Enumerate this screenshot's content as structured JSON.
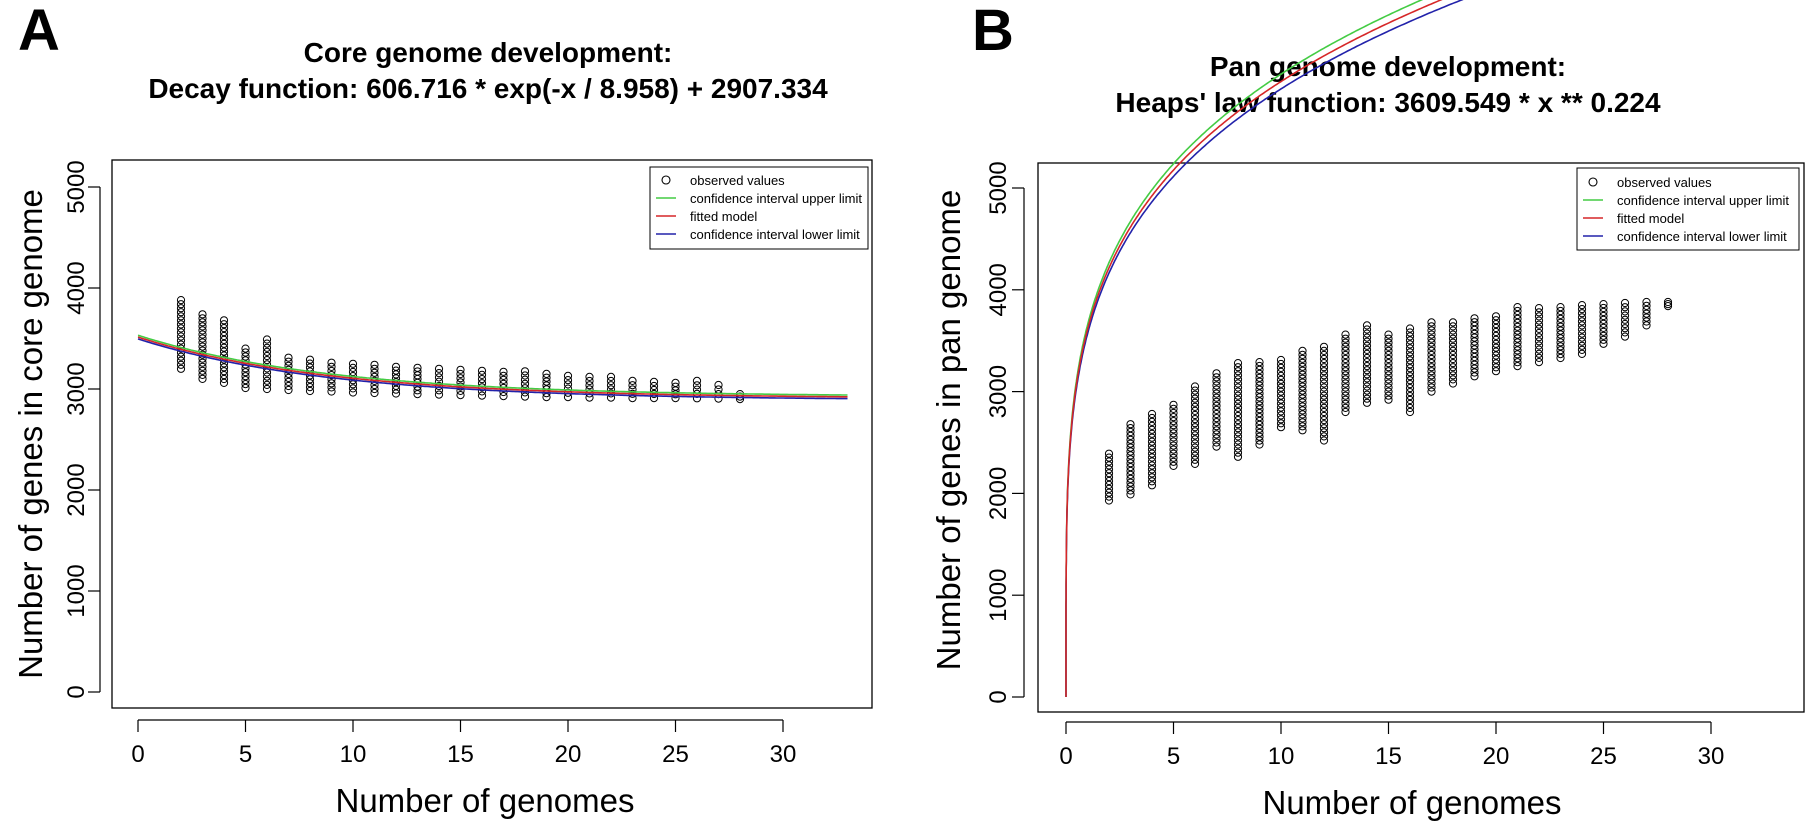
{
  "chart_data": [
    {
      "type": "scatter",
      "panel_label": "A",
      "title": "Core genome development:",
      "subtitle": "Decay function: 606.716 * exp(-x / 8.958) + 2907.334",
      "xlabel": "Number of genomes",
      "ylabel": "Number of genes in core genome",
      "xlim": [
        0,
        33
      ],
      "ylim": [
        0,
        5000
      ],
      "xticks": [
        "0",
        "5",
        "10",
        "15",
        "20",
        "25",
        "30"
      ],
      "yticks": [
        "0",
        "1000",
        "2000",
        "3000",
        "4000",
        "5000"
      ],
      "legend_position": "top-right",
      "legend": [
        {
          "label": "observed values",
          "kind": "circle",
          "color": "#000000"
        },
        {
          "label": "confidence interval upper limit",
          "kind": "line",
          "color": "#44cc44"
        },
        {
          "label": "fitted model",
          "kind": "line",
          "color": "#d62728"
        },
        {
          "label": "confidence interval lower limit",
          "kind": "line",
          "color": "#2222aa"
        }
      ],
      "model": {
        "kind": "decay",
        "a": 606.716,
        "b": 8.958,
        "c": 2907.334,
        "ci_offset": 18
      },
      "observed": [
        {
          "x": 2,
          "min": 3200,
          "max": 3880
        },
        {
          "x": 3,
          "min": 3100,
          "max": 3740
        },
        {
          "x": 4,
          "min": 3060,
          "max": 3680
        },
        {
          "x": 5,
          "min": 3010,
          "max": 3400
        },
        {
          "x": 6,
          "min": 3000,
          "max": 3490
        },
        {
          "x": 7,
          "min": 2990,
          "max": 3310
        },
        {
          "x": 8,
          "min": 2980,
          "max": 3290
        },
        {
          "x": 9,
          "min": 2975,
          "max": 3260
        },
        {
          "x": 10,
          "min": 2965,
          "max": 3250
        },
        {
          "x": 11,
          "min": 2960,
          "max": 3240
        },
        {
          "x": 12,
          "min": 2955,
          "max": 3220
        },
        {
          "x": 13,
          "min": 2950,
          "max": 3210
        },
        {
          "x": 14,
          "min": 2945,
          "max": 3200
        },
        {
          "x": 15,
          "min": 2940,
          "max": 3190
        },
        {
          "x": 16,
          "min": 2935,
          "max": 3180
        },
        {
          "x": 17,
          "min": 2930,
          "max": 3170
        },
        {
          "x": 18,
          "min": 2925,
          "max": 3175
        },
        {
          "x": 19,
          "min": 2920,
          "max": 3150
        },
        {
          "x": 20,
          "min": 2920,
          "max": 3130
        },
        {
          "x": 21,
          "min": 2915,
          "max": 3120
        },
        {
          "x": 22,
          "min": 2915,
          "max": 3120
        },
        {
          "x": 23,
          "min": 2910,
          "max": 3080
        },
        {
          "x": 24,
          "min": 2910,
          "max": 3070
        },
        {
          "x": 25,
          "min": 2910,
          "max": 3060
        },
        {
          "x": 26,
          "min": 2908,
          "max": 3080
        },
        {
          "x": 27,
          "min": 2905,
          "max": 3040
        },
        {
          "x": 28,
          "min": 2900,
          "max": 2950
        }
      ]
    },
    {
      "type": "scatter",
      "panel_label": "B",
      "title": "Pan genome development:",
      "subtitle": "Heaps' law function: 3609.549 * x ** 0.224",
      "xlabel": "Number of genomes",
      "ylabel": "Number of genes in pan genome",
      "xlim": [
        0,
        33
      ],
      "ylim": [
        0,
        5000
      ],
      "xticks": [
        "0",
        "5",
        "10",
        "15",
        "20",
        "25",
        "30"
      ],
      "yticks": [
        "0",
        "1000",
        "2000",
        "3000",
        "4000",
        "5000"
      ],
      "legend_position": "top-right",
      "legend": [
        {
          "label": "observed values",
          "kind": "circle",
          "color": "#000000"
        },
        {
          "label": "confidence interval upper limit",
          "kind": "line",
          "color": "#44cc44"
        },
        {
          "label": "fitted model",
          "kind": "line",
          "color": "#d62728"
        },
        {
          "label": "confidence interval lower limit",
          "kind": "line",
          "color": "#2222aa"
        }
      ],
      "model": {
        "kind": "heaps",
        "a": 3609.549,
        "b": 0.224,
        "ci_rel": 0.012
      },
      "observed": [
        {
          "x": 2,
          "min": 1930,
          "max": 2390
        },
        {
          "x": 3,
          "min": 1990,
          "max": 2680
        },
        {
          "x": 4,
          "min": 2080,
          "max": 2780
        },
        {
          "x": 5,
          "min": 2270,
          "max": 2870
        },
        {
          "x": 6,
          "min": 2290,
          "max": 3050
        },
        {
          "x": 7,
          "min": 2460,
          "max": 3180
        },
        {
          "x": 8,
          "min": 2360,
          "max": 3280
        },
        {
          "x": 9,
          "min": 2480,
          "max": 3290
        },
        {
          "x": 10,
          "min": 2650,
          "max": 3310
        },
        {
          "x": 11,
          "min": 2620,
          "max": 3400
        },
        {
          "x": 12,
          "min": 2520,
          "max": 3440
        },
        {
          "x": 13,
          "min": 2800,
          "max": 3560
        },
        {
          "x": 14,
          "min": 2890,
          "max": 3650
        },
        {
          "x": 15,
          "min": 2920,
          "max": 3560
        },
        {
          "x": 16,
          "min": 2800,
          "max": 3620
        },
        {
          "x": 17,
          "min": 3000,
          "max": 3680
        },
        {
          "x": 18,
          "min": 3080,
          "max": 3680
        },
        {
          "x": 19,
          "min": 3150,
          "max": 3720
        },
        {
          "x": 20,
          "min": 3200,
          "max": 3740
        },
        {
          "x": 21,
          "min": 3250,
          "max": 3830
        },
        {
          "x": 22,
          "min": 3290,
          "max": 3820
        },
        {
          "x": 23,
          "min": 3330,
          "max": 3830
        },
        {
          "x": 24,
          "min": 3370,
          "max": 3850
        },
        {
          "x": 25,
          "min": 3470,
          "max": 3860
        },
        {
          "x": 26,
          "min": 3540,
          "max": 3870
        },
        {
          "x": 27,
          "min": 3650,
          "max": 3880
        },
        {
          "x": 28,
          "min": 3840,
          "max": 3880
        }
      ]
    }
  ]
}
